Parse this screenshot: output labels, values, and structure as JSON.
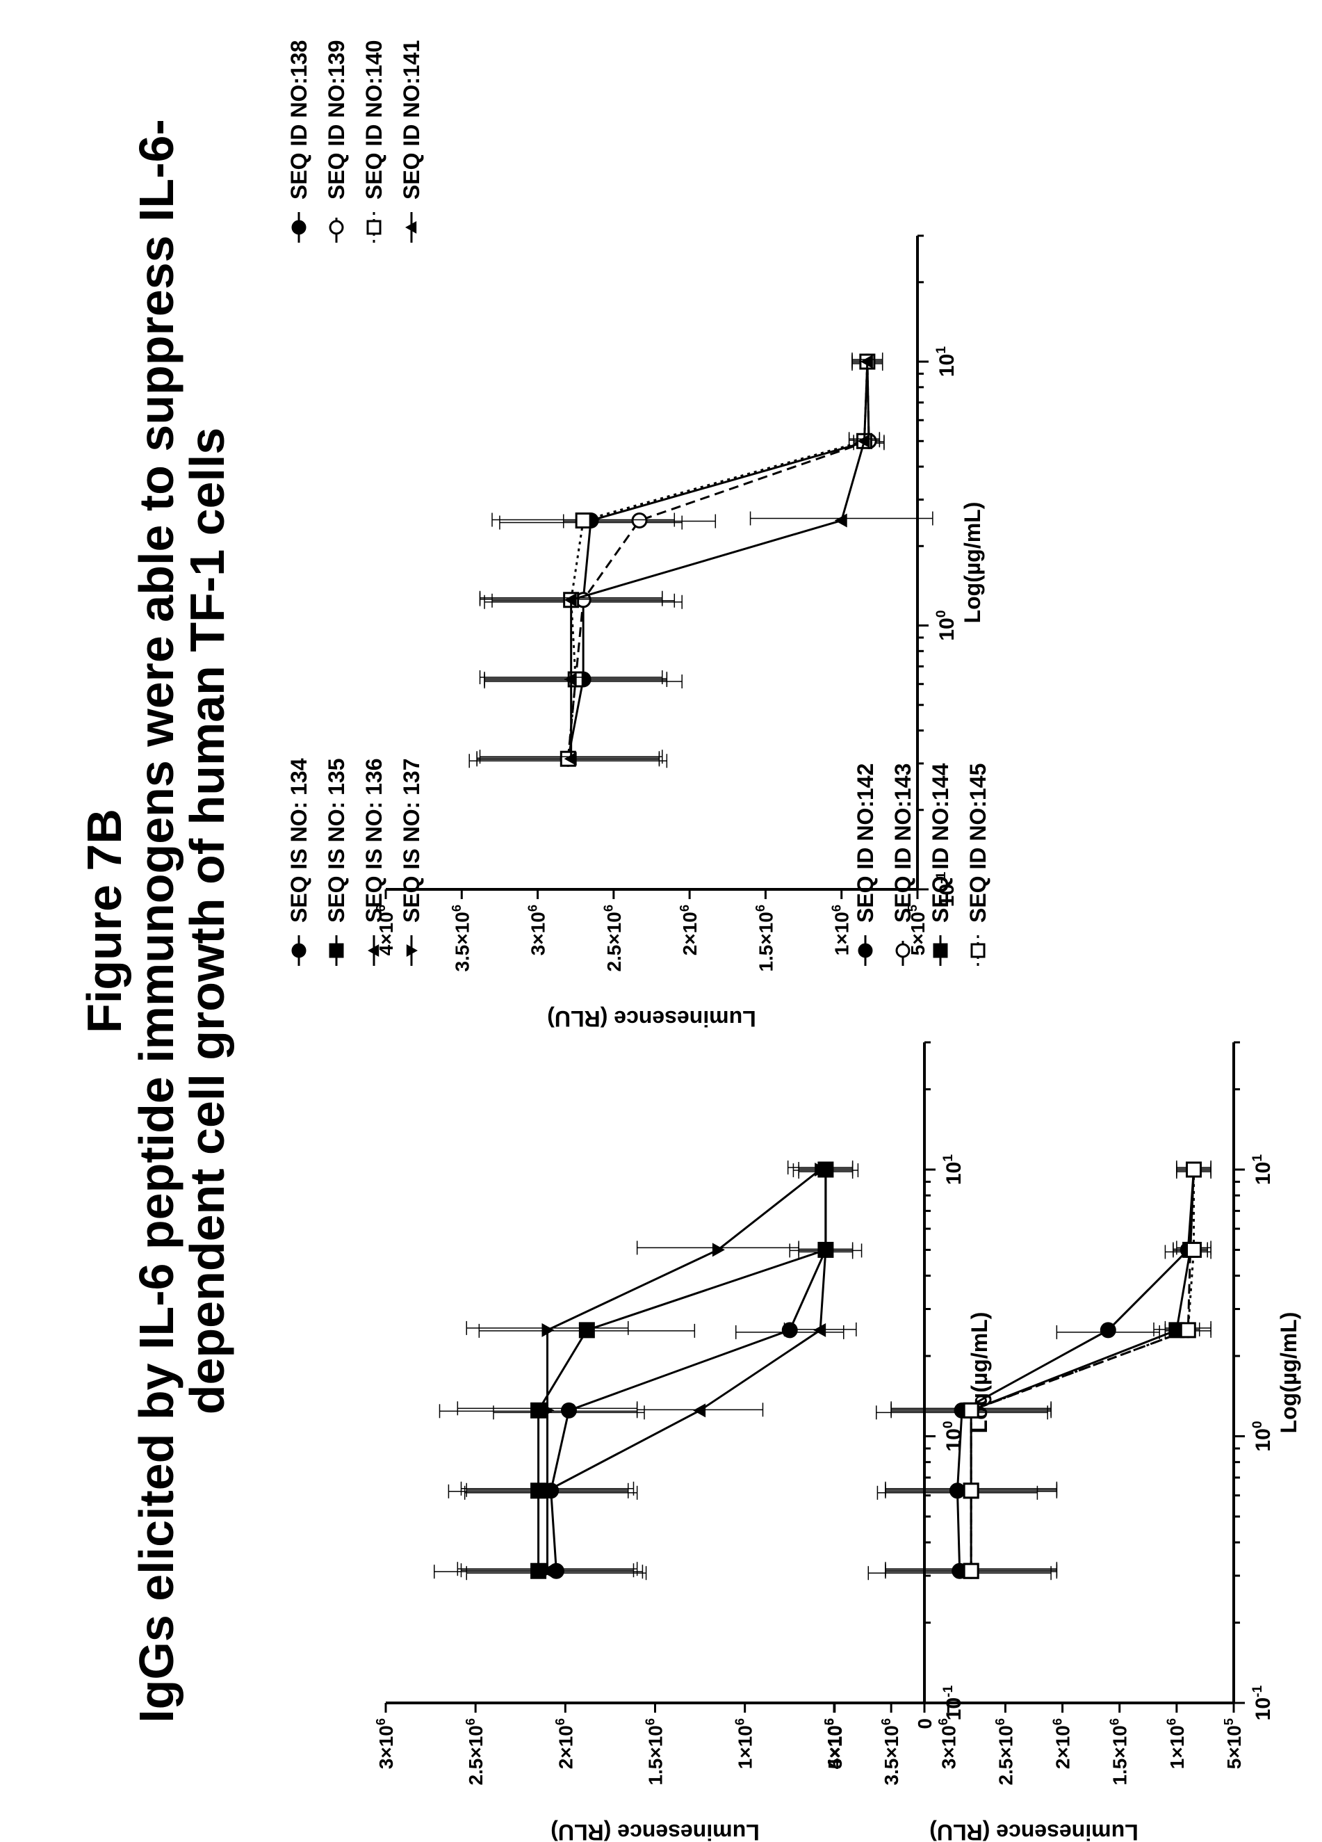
{
  "title": {
    "line1": "Figure 7B",
    "line2": "IgGs elicited by IL-6 peptide immunogens were able to suppress IL-6-",
    "line3": "dependent cell growth of human TF-1 cells"
  },
  "chart_data": [
    {
      "type": "line",
      "xlabel": "Log(µg/mL)",
      "ylabel": "Luminesence (RLU)",
      "xscale": "log",
      "xlim": [
        0.1,
        30
      ],
      "ylim": [
        0,
        3000000
      ],
      "x_ticks": [
        {
          "value": 0.1,
          "label": "10-1"
        },
        {
          "value": 1,
          "label": "100"
        },
        {
          "value": 10,
          "label": "101"
        }
      ],
      "y_ticks": [
        {
          "value": 0,
          "label": "0"
        },
        {
          "value": 500000,
          "label": "5×105"
        },
        {
          "value": 1000000,
          "label": "1×106"
        },
        {
          "value": 1500000,
          "label": "1.5×106"
        },
        {
          "value": 2000000,
          "label": "2×106"
        },
        {
          "value": 2500000,
          "label": "2.5×106"
        },
        {
          "value": 3000000,
          "label": "3×106"
        }
      ],
      "legend_position": "right",
      "x": [
        0.3125,
        0.625,
        1.25,
        2.5,
        5,
        10
      ],
      "series": [
        {
          "name": "SEQ IS NO: 134",
          "marker": "circle",
          "dash": "solid",
          "values": [
            2050000,
            2080000,
            1980000,
            750000,
            550000,
            550000
          ],
          "err": [
            500000,
            480000,
            420000,
            300000,
            150000,
            150000
          ]
        },
        {
          "name": "SEQ IS NO: 135",
          "marker": "square",
          "dash": "solid",
          "values": [
            2150000,
            2150000,
            2150000,
            1880000,
            550000,
            550000
          ],
          "err": [
            580000,
            500000,
            550000,
            600000,
            200000,
            180000
          ]
        },
        {
          "name": "SEQ IS NO: 136",
          "marker": "triangle-up",
          "dash": "solid",
          "values": [
            2100000,
            2100000,
            1250000,
            580000,
            550000,
            550000
          ],
          "err": [
            480000,
            450000,
            350000,
            200000,
            150000,
            150000
          ]
        },
        {
          "name": "SEQ IS NO: 137",
          "marker": "triangle-down",
          "dash": "solid",
          "values": [
            2100000,
            2100000,
            2100000,
            2100000,
            1150000,
            580000
          ],
          "err": [
            500000,
            480000,
            500000,
            450000,
            450000,
            180000
          ]
        }
      ]
    },
    {
      "type": "line",
      "xlabel": "Log(µg/mL)",
      "ylabel": "Luminesence (RLU)",
      "xscale": "log",
      "xlim": [
        0.1,
        30
      ],
      "ylim": [
        500000,
        4000000
      ],
      "x_ticks": [
        {
          "value": 0.1,
          "label": "10-1"
        },
        {
          "value": 1,
          "label": "100"
        },
        {
          "value": 10,
          "label": "101"
        }
      ],
      "y_ticks": [
        {
          "value": 500000,
          "label": "5×105"
        },
        {
          "value": 1000000,
          "label": "1×106"
        },
        {
          "value": 1500000,
          "label": "1.5×106"
        },
        {
          "value": 2000000,
          "label": "2×106"
        },
        {
          "value": 2500000,
          "label": "2.5×106"
        },
        {
          "value": 3000000,
          "label": "3×106"
        },
        {
          "value": 3500000,
          "label": "3.5×106"
        },
        {
          "value": 4000000,
          "label": "4×106"
        }
      ],
      "legend_position": "right",
      "x": [
        0.3125,
        0.625,
        1.25,
        2.5,
        5,
        10
      ],
      "series": [
        {
          "name": "SEQ ID NO:138",
          "marker": "circle",
          "dash": "solid",
          "values": [
            2800000,
            2700000,
            2700000,
            2650000,
            820000,
            830000
          ],
          "err": [
            650000,
            650000,
            650000,
            600000,
            100000,
            100000
          ]
        },
        {
          "name": "SEQ ID NO:139",
          "marker": "circle-open",
          "dash": "dashed",
          "values": [
            2800000,
            2750000,
            2700000,
            2330000,
            820000,
            830000
          ],
          "err": [
            600000,
            600000,
            600000,
            500000,
            100000,
            100000
          ]
        },
        {
          "name": "SEQ ID NO:140",
          "marker": "square-open",
          "dash": "dotted",
          "values": [
            2800000,
            2750000,
            2780000,
            2700000,
            850000,
            830000
          ],
          "err": [
            600000,
            600000,
            600000,
            600000,
            100000,
            100000
          ]
        },
        {
          "name": "SEQ ID NO:141",
          "marker": "triangle-up",
          "dash": "solid",
          "values": [
            2780000,
            2780000,
            2780000,
            1000000,
            850000,
            830000
          ],
          "err": [
            600000,
            600000,
            600000,
            600000,
            100000,
            100000
          ]
        }
      ]
    },
    {
      "type": "line",
      "xlabel": "Log(µg/mL)",
      "ylabel": "Luminesence (RLU)",
      "xscale": "log",
      "xlim": [
        0.1,
        30
      ],
      "ylim": [
        500000,
        4000000
      ],
      "x_ticks": [
        {
          "value": 0.1,
          "label": "10-1"
        },
        {
          "value": 1,
          "label": "100"
        },
        {
          "value": 10,
          "label": "101"
        }
      ],
      "y_ticks": [
        {
          "value": 500000,
          "label": "5×105"
        },
        {
          "value": 1000000,
          "label": "1×106"
        },
        {
          "value": 1500000,
          "label": "1.5×106"
        },
        {
          "value": 2000000,
          "label": "2×106"
        },
        {
          "value": 2500000,
          "label": "2.5×106"
        },
        {
          "value": 3000000,
          "label": "3×106"
        },
        {
          "value": 3500000,
          "label": "3.5×106"
        },
        {
          "value": 4000000,
          "label": "4×106"
        }
      ],
      "legend_position": "right",
      "x": [
        0.3125,
        0.625,
        1.25,
        2.5,
        5,
        10
      ],
      "series": [
        {
          "name": "SEQ ID NO:142",
          "marker": "circle",
          "dash": "solid",
          "values": [
            2900000,
            2920000,
            2880000,
            1600000,
            900000,
            850000
          ],
          "err": [
            800000,
            700000,
            750000,
            450000,
            200000,
            150000
          ]
        },
        {
          "name": "SEQ ID NO:143",
          "marker": "circle-open",
          "dash": "dashed",
          "values": [
            2800000,
            2800000,
            2800000,
            900000,
            880000,
            850000
          ],
          "err": [
            750000,
            750000,
            700000,
            200000,
            150000,
            150000
          ]
        },
        {
          "name": "SEQ ID NO:144",
          "marker": "square",
          "dash": "solid",
          "values": [
            2800000,
            2800000,
            2800000,
            1000000,
            880000,
            850000
          ],
          "err": [
            750000,
            750000,
            700000,
            200000,
            150000,
            150000
          ]
        },
        {
          "name": "SEQ ID NO:145",
          "marker": "square-open",
          "dash": "dotted",
          "values": [
            2800000,
            2800000,
            2800000,
            900000,
            850000,
            850000
          ],
          "err": [
            750000,
            750000,
            700000,
            200000,
            150000,
            150000
          ]
        }
      ]
    }
  ]
}
